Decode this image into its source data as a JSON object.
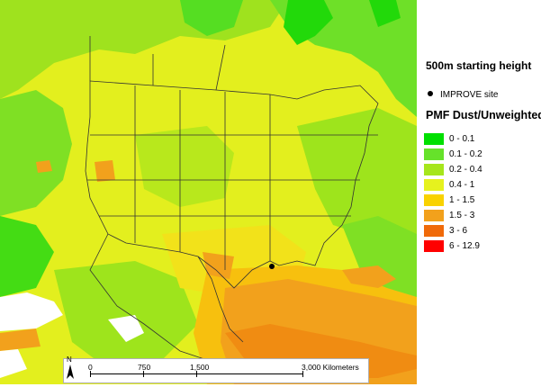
{
  "legend": {
    "title_height": "500m starting height",
    "site_label": "IMPROVE site",
    "pmf_title": "PMF Dust/Unweighted",
    "classes": [
      {
        "label": "0 - 0.1",
        "color": "#00e000"
      },
      {
        "label": "0.1 - 0.2",
        "color": "#66e22a"
      },
      {
        "label": "0.2 - 0.4",
        "color": "#a6e61c"
      },
      {
        "label": "0.4 - 1",
        "color": "#e6f21e"
      },
      {
        "label": "1 - 1.5",
        "color": "#f9d200"
      },
      {
        "label": "1.5 - 3",
        "color": "#f2a11c"
      },
      {
        "label": "3 - 6",
        "color": "#f06a0a"
      },
      {
        "label": "6 - 12.9",
        "color": "#ff0000"
      }
    ]
  },
  "scalebar": {
    "labels": [
      "0",
      "750",
      "1,500",
      "3,000 Kilometers"
    ]
  },
  "north_arrow": {
    "label": "N"
  }
}
